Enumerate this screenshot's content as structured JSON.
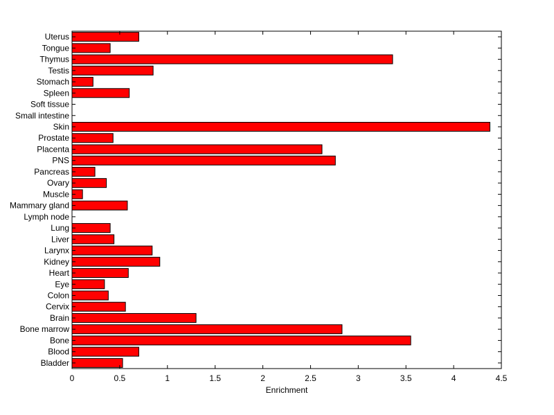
{
  "chart_data": {
    "type": "bar",
    "orientation": "horizontal",
    "title": "",
    "xlabel": "Enrichment",
    "ylabel": "",
    "xlim": [
      0,
      4.5
    ],
    "xticks": [
      0,
      0.5,
      1,
      1.5,
      2,
      2.5,
      3,
      3.5,
      4,
      4.5
    ],
    "xtick_labels": [
      "0",
      "0.5",
      "1",
      "1.5",
      "2",
      "2.5",
      "3",
      "3.5",
      "4",
      "4.5"
    ],
    "grid": false,
    "legend": "none",
    "bar_color": "#ff0000",
    "categories": [
      "Bladder",
      "Blood",
      "Bone",
      "Bone marrow",
      "Brain",
      "Cervix",
      "Colon",
      "Eye",
      "Heart",
      "Kidney",
      "Larynx",
      "Liver",
      "Lung",
      "Lymph node",
      "Mammary gland",
      "Muscle",
      "Ovary",
      "Pancreas",
      "PNS",
      "Placenta",
      "Prostate",
      "Skin",
      "Small intestine",
      "Soft tissue",
      "Spleen",
      "Stomach",
      "Testis",
      "Thymus",
      "Tongue",
      "Uterus"
    ],
    "values": [
      0.53,
      0.7,
      3.55,
      2.83,
      1.3,
      0.56,
      0.38,
      0.34,
      0.59,
      0.92,
      0.84,
      0.44,
      0.4,
      0,
      0.58,
      0.11,
      0.36,
      0.24,
      2.76,
      2.62,
      0.43,
      4.38,
      0,
      0,
      0.6,
      0.22,
      0.85,
      3.36,
      0.4,
      0.7
    ]
  }
}
